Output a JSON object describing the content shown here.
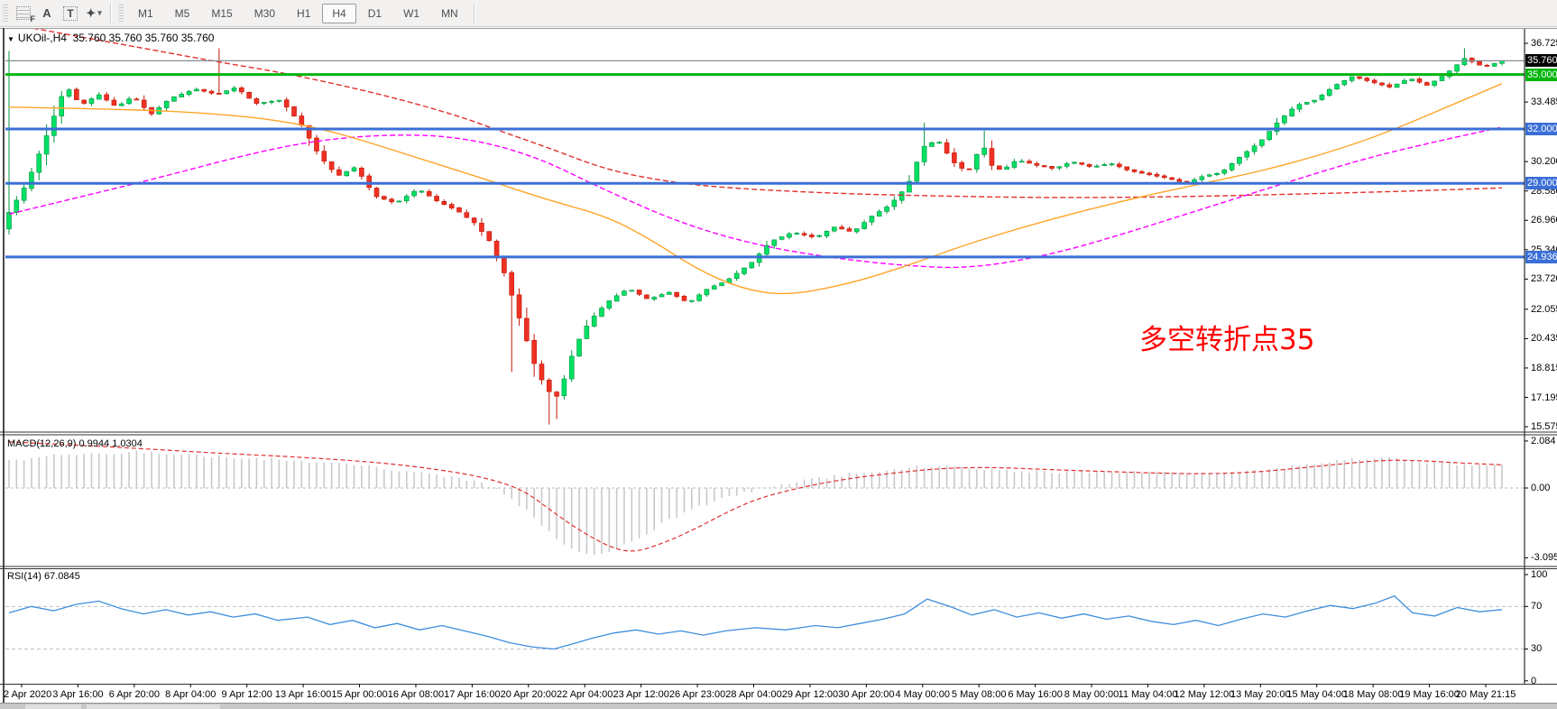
{
  "toolbar": {
    "tools": [
      {
        "id": "chart-grid-tool",
        "glyph": "",
        "sub": "F"
      },
      {
        "id": "label-tool",
        "glyph": "A"
      },
      {
        "id": "text-tool",
        "glyph": "T",
        "boxed": true
      },
      {
        "id": "shapes-tool",
        "glyph": "✦",
        "caret": "▾"
      }
    ],
    "timeframes": [
      "M1",
      "M5",
      "M15",
      "M30",
      "H1",
      "H4",
      "D1",
      "W1",
      "MN"
    ],
    "active_timeframe": "H4"
  },
  "chart_data": {
    "type": "candlestick",
    "symbol": "UKOil-",
    "timeframe": "H4",
    "title": "UKOil-,H4",
    "quote_line": "35.760 35.760 35.760 35.760",
    "current_price": 35.76,
    "current_price_label": "35.760",
    "current_price_line_color": "#848c94",
    "price_axis": {
      "range": [
        15.33,
        37.52
      ],
      "ticks": [
        "36.725",
        "33.485",
        "30.200",
        "28.580",
        "26.960",
        "25.340",
        "23.720",
        "22.055",
        "20.435",
        "18.815",
        "17.195",
        "15.575"
      ]
    },
    "level_lines": [
      {
        "label": "35.000",
        "value": 35.0,
        "color": "#00b50c"
      },
      {
        "label": "32.000",
        "value": 32.0,
        "color": "#3b6fd7"
      },
      {
        "label": "29.000",
        "value": 29.0,
        "color": "#3b6fd7"
      },
      {
        "label": "24.936",
        "value": 24.936,
        "color": "#3b6fd7"
      }
    ],
    "annotation": {
      "text": "多空转折点35",
      "color": "#ff0000"
    },
    "time_axis": {
      "labels": [
        "2 Apr 2020",
        "3 Apr 16:00",
        "6 Apr 20:00",
        "8 Apr 04:00",
        "9 Apr 12:00",
        "13 Apr 16:00",
        "15 Apr 00:00",
        "16 Apr 08:00",
        "17 Apr 16:00",
        "20 Apr 20:00",
        "22 Apr 04:00",
        "23 Apr 12:00",
        "26 Apr 23:00",
        "28 Apr 04:00",
        "29 Apr 12:00",
        "30 Apr 20:00",
        "4 May 00:00",
        "5 May 08:00",
        "6 May 16:00",
        "8 May 00:00",
        "11 May 04:00",
        "12 May 12:00",
        "13 May 20:00",
        "15 May 04:00",
        "18 May 08:00",
        "19 May 16:00",
        "20 May 21:15"
      ]
    },
    "candles": {
      "count": 200,
      "up_fill": "#00e164",
      "up_stroke": "#00953f",
      "down_fill": "#ef3124",
      "down_stroke": "#c21807",
      "close_anchors": [
        [
          0,
          27.4
        ],
        [
          0.012,
          29.0
        ],
        [
          0.025,
          31.6
        ],
        [
          0.038,
          34.4
        ],
        [
          0.048,
          33.3
        ],
        [
          0.06,
          33.9
        ],
        [
          0.072,
          33.2
        ],
        [
          0.083,
          33.8
        ],
        [
          0.095,
          32.8
        ],
        [
          0.108,
          33.7
        ],
        [
          0.125,
          34.2
        ],
        [
          0.139,
          33.9
        ],
        [
          0.152,
          34.3
        ],
        [
          0.165,
          33.4
        ],
        [
          0.182,
          33.6
        ],
        [
          0.196,
          32.2
        ],
        [
          0.208,
          30.5
        ],
        [
          0.22,
          29.4
        ],
        [
          0.232,
          29.9
        ],
        [
          0.245,
          28.3
        ],
        [
          0.259,
          27.9
        ],
        [
          0.274,
          28.7
        ],
        [
          0.287,
          28.0
        ],
        [
          0.3,
          27.5
        ],
        [
          0.312,
          26.8
        ],
        [
          0.322,
          25.8
        ],
        [
          0.332,
          24.0
        ],
        [
          0.342,
          21.5
        ],
        [
          0.352,
          19.0
        ],
        [
          0.36,
          17.6
        ],
        [
          0.368,
          17.2
        ],
        [
          0.376,
          19.3
        ],
        [
          0.384,
          20.8
        ],
        [
          0.393,
          21.8
        ],
        [
          0.403,
          22.6
        ],
        [
          0.415,
          23.2
        ],
        [
          0.428,
          22.6
        ],
        [
          0.442,
          23.0
        ],
        [
          0.455,
          22.4
        ],
        [
          0.468,
          23.2
        ],
        [
          0.48,
          23.6
        ],
        [
          0.497,
          24.6
        ],
        [
          0.51,
          25.8
        ],
        [
          0.525,
          26.3
        ],
        [
          0.54,
          26.0
        ],
        [
          0.553,
          26.6
        ],
        [
          0.565,
          26.3
        ],
        [
          0.578,
          27.2
        ],
        [
          0.59,
          27.8
        ],
        [
          0.602,
          28.9
        ],
        [
          0.612,
          31.0
        ],
        [
          0.622,
          31.4
        ],
        [
          0.632,
          30.2
        ],
        [
          0.642,
          29.6
        ],
        [
          0.652,
          31.2
        ],
        [
          0.658,
          30.0
        ],
        [
          0.665,
          29.7
        ],
        [
          0.675,
          30.3
        ],
        [
          0.688,
          30.0
        ],
        [
          0.7,
          29.8
        ],
        [
          0.712,
          30.2
        ],
        [
          0.725,
          29.9
        ],
        [
          0.738,
          30.1
        ],
        [
          0.75,
          29.7
        ],
        [
          0.762,
          29.5
        ],
        [
          0.775,
          29.3
        ],
        [
          0.788,
          29.0
        ],
        [
          0.8,
          29.4
        ],
        [
          0.812,
          29.6
        ],
        [
          0.825,
          30.5
        ],
        [
          0.838,
          31.3
        ],
        [
          0.85,
          32.4
        ],
        [
          0.862,
          33.3
        ],
        [
          0.875,
          33.6
        ],
        [
          0.888,
          34.4
        ],
        [
          0.9,
          34.9
        ],
        [
          0.912,
          34.6
        ],
        [
          0.925,
          34.3
        ],
        [
          0.938,
          34.8
        ],
        [
          0.95,
          34.4
        ],
        [
          0.962,
          35.0
        ],
        [
          0.975,
          35.9
        ],
        [
          0.988,
          35.4
        ],
        [
          1.0,
          35.76
        ]
      ],
      "spikes": [
        {
          "t": 0.002,
          "high": 36.3,
          "low": 26.7
        },
        {
          "t": 0.139,
          "high": 36.45
        },
        {
          "t": 0.335,
          "low": 18.6
        },
        {
          "t": 0.362,
          "low": 15.7
        },
        {
          "t": 0.369,
          "low": 16.0
        },
        {
          "t": 0.612,
          "high": 32.35
        },
        {
          "t": 0.652,
          "high": 31.9
        },
        {
          "t": 0.975,
          "high": 36.45
        }
      ]
    },
    "moving_averages": [
      {
        "name": "ma-slow-red",
        "color": "#e03030",
        "dash": "6 3",
        "anchors": [
          [
            0,
            37.8
          ],
          [
            0.06,
            36.9
          ],
          [
            0.1,
            36.3
          ],
          [
            0.14,
            35.7
          ],
          [
            0.19,
            35.0
          ],
          [
            0.25,
            33.9
          ],
          [
            0.3,
            32.75
          ],
          [
            0.325,
            32.0
          ],
          [
            0.36,
            31.0
          ],
          [
            0.4,
            29.75
          ],
          [
            0.44,
            29.1
          ],
          [
            0.48,
            28.75
          ],
          [
            0.55,
            28.45
          ],
          [
            0.62,
            28.3
          ],
          [
            0.7,
            28.2
          ],
          [
            0.78,
            28.25
          ],
          [
            0.86,
            28.4
          ],
          [
            0.93,
            28.55
          ],
          [
            1.0,
            28.75
          ]
        ]
      },
      {
        "name": "ma-medium-magenta",
        "color": "#ff00ff",
        "dash": "6 3",
        "anchors": [
          [
            0,
            27.3
          ],
          [
            0.05,
            28.3
          ],
          [
            0.1,
            29.3
          ],
          [
            0.155,
            30.5
          ],
          [
            0.2,
            31.3
          ],
          [
            0.25,
            31.7
          ],
          [
            0.3,
            31.6
          ],
          [
            0.35,
            30.6
          ],
          [
            0.4,
            28.6
          ],
          [
            0.45,
            26.8
          ],
          [
            0.5,
            25.6
          ],
          [
            0.55,
            24.9
          ],
          [
            0.6,
            24.45
          ],
          [
            0.645,
            24.3
          ],
          [
            0.7,
            25.1
          ],
          [
            0.75,
            26.3
          ],
          [
            0.8,
            27.6
          ],
          [
            0.85,
            28.9
          ],
          [
            0.905,
            30.3
          ],
          [
            0.95,
            31.2
          ],
          [
            1.0,
            32.1
          ]
        ]
      },
      {
        "name": "ma-fast-orange",
        "color": "#ffa428",
        "dash": "",
        "anchors": [
          [
            0,
            33.2
          ],
          [
            0.07,
            33.1
          ],
          [
            0.13,
            32.9
          ],
          [
            0.18,
            32.5
          ],
          [
            0.22,
            31.8
          ],
          [
            0.27,
            30.5
          ],
          [
            0.32,
            29.2
          ],
          [
            0.36,
            28.1
          ],
          [
            0.4,
            27.2
          ],
          [
            0.43,
            25.9
          ],
          [
            0.46,
            24.3
          ],
          [
            0.49,
            23.2
          ],
          [
            0.52,
            22.8
          ],
          [
            0.56,
            23.4
          ],
          [
            0.6,
            24.4
          ],
          [
            0.64,
            25.6
          ],
          [
            0.68,
            26.6
          ],
          [
            0.72,
            27.5
          ],
          [
            0.76,
            28.3
          ],
          [
            0.8,
            29.0
          ],
          [
            0.84,
            29.7
          ],
          [
            0.88,
            30.6
          ],
          [
            0.92,
            31.7
          ],
          [
            0.96,
            33.1
          ],
          [
            1.0,
            34.5
          ]
        ]
      }
    ],
    "macd": {
      "label": "MACD(12,26,9)",
      "value": "0.9944",
      "signal_value": "1.0304",
      "axis_ticks": [
        "2.084",
        "0.00",
        "-3.0957"
      ],
      "hist_color": "#c9c9c9",
      "signal_color": "#e03030",
      "hist_anchors": [
        [
          0,
          1.2
        ],
        [
          0.03,
          1.45
        ],
        [
          0.06,
          1.55
        ],
        [
          0.09,
          1.6
        ],
        [
          0.12,
          1.5
        ],
        [
          0.15,
          1.35
        ],
        [
          0.18,
          1.25
        ],
        [
          0.21,
          1.15
        ],
        [
          0.24,
          1.0
        ],
        [
          0.27,
          0.7
        ],
        [
          0.3,
          0.45
        ],
        [
          0.32,
          0.15
        ],
        [
          0.335,
          -0.4
        ],
        [
          0.35,
          -1.2
        ],
        [
          0.365,
          -2.2
        ],
        [
          0.38,
          -2.8
        ],
        [
          0.395,
          -3.0
        ],
        [
          0.41,
          -2.6
        ],
        [
          0.425,
          -2.1
        ],
        [
          0.44,
          -1.5
        ],
        [
          0.46,
          -0.9
        ],
        [
          0.48,
          -0.4
        ],
        [
          0.5,
          -0.1
        ],
        [
          0.52,
          0.2
        ],
        [
          0.55,
          0.5
        ],
        [
          0.58,
          0.75
        ],
        [
          0.61,
          0.95
        ],
        [
          0.64,
          0.9
        ],
        [
          0.67,
          0.78
        ],
        [
          0.7,
          0.7
        ],
        [
          0.73,
          0.75
        ],
        [
          0.76,
          0.7
        ],
        [
          0.79,
          0.62
        ],
        [
          0.82,
          0.68
        ],
        [
          0.85,
          0.9
        ],
        [
          0.88,
          1.15
        ],
        [
          0.905,
          1.3
        ],
        [
          0.925,
          1.32
        ],
        [
          0.945,
          1.2
        ],
        [
          0.965,
          1.1
        ],
        [
          0.985,
          1.02
        ],
        [
          1.0,
          0.99
        ]
      ],
      "signal_anchors": [
        [
          0,
          2.05
        ],
        [
          0.04,
          1.92
        ],
        [
          0.08,
          1.78
        ],
        [
          0.12,
          1.62
        ],
        [
          0.16,
          1.48
        ],
        [
          0.2,
          1.35
        ],
        [
          0.25,
          1.12
        ],
        [
          0.29,
          0.8
        ],
        [
          0.32,
          0.45
        ],
        [
          0.345,
          -0.1
        ],
        [
          0.365,
          -1.1
        ],
        [
          0.385,
          -2.0
        ],
        [
          0.405,
          -2.7
        ],
        [
          0.42,
          -2.85
        ],
        [
          0.44,
          -2.4
        ],
        [
          0.46,
          -1.8
        ],
        [
          0.48,
          -1.1
        ],
        [
          0.5,
          -0.5
        ],
        [
          0.525,
          -0.05
        ],
        [
          0.555,
          0.35
        ],
        [
          0.59,
          0.65
        ],
        [
          0.625,
          0.88
        ],
        [
          0.66,
          0.92
        ],
        [
          0.695,
          0.82
        ],
        [
          0.73,
          0.74
        ],
        [
          0.765,
          0.67
        ],
        [
          0.8,
          0.62
        ],
        [
          0.835,
          0.7
        ],
        [
          0.87,
          0.92
        ],
        [
          0.9,
          1.12
        ],
        [
          0.925,
          1.25
        ],
        [
          0.95,
          1.2
        ],
        [
          0.975,
          1.1
        ],
        [
          1.0,
          1.03
        ]
      ]
    },
    "rsi": {
      "label": "RSI(14)",
      "value": "67.0845",
      "axis_ticks": [
        "100",
        "70",
        "30",
        "0"
      ],
      "guide_levels": [
        70,
        30
      ],
      "color": "#3e8ede",
      "anchors": [
        [
          0,
          64
        ],
        [
          0.015,
          70
        ],
        [
          0.03,
          66
        ],
        [
          0.045,
          72
        ],
        [
          0.06,
          75
        ],
        [
          0.075,
          68
        ],
        [
          0.09,
          63
        ],
        [
          0.105,
          67
        ],
        [
          0.12,
          62
        ],
        [
          0.135,
          65
        ],
        [
          0.15,
          60
        ],
        [
          0.165,
          63
        ],
        [
          0.18,
          57
        ],
        [
          0.2,
          60
        ],
        [
          0.215,
          53
        ],
        [
          0.23,
          57
        ],
        [
          0.245,
          50
        ],
        [
          0.26,
          54
        ],
        [
          0.275,
          48
        ],
        [
          0.29,
          52
        ],
        [
          0.305,
          47
        ],
        [
          0.32,
          42
        ],
        [
          0.335,
          36
        ],
        [
          0.35,
          32
        ],
        [
          0.365,
          30
        ],
        [
          0.378,
          35
        ],
        [
          0.39,
          40
        ],
        [
          0.405,
          45
        ],
        [
          0.42,
          48
        ],
        [
          0.435,
          44
        ],
        [
          0.45,
          47
        ],
        [
          0.465,
          43
        ],
        [
          0.48,
          47
        ],
        [
          0.5,
          50
        ],
        [
          0.52,
          48
        ],
        [
          0.54,
          52
        ],
        [
          0.555,
          50
        ],
        [
          0.57,
          54
        ],
        [
          0.585,
          58
        ],
        [
          0.6,
          63
        ],
        [
          0.615,
          77
        ],
        [
          0.63,
          70
        ],
        [
          0.645,
          62
        ],
        [
          0.66,
          67
        ],
        [
          0.675,
          60
        ],
        [
          0.69,
          64
        ],
        [
          0.705,
          59
        ],
        [
          0.72,
          63
        ],
        [
          0.735,
          58
        ],
        [
          0.75,
          61
        ],
        [
          0.765,
          56
        ],
        [
          0.78,
          53
        ],
        [
          0.795,
          57
        ],
        [
          0.81,
          52
        ],
        [
          0.825,
          58
        ],
        [
          0.84,
          63
        ],
        [
          0.855,
          60
        ],
        [
          0.87,
          66
        ],
        [
          0.885,
          71
        ],
        [
          0.9,
          68
        ],
        [
          0.915,
          73
        ],
        [
          0.928,
          80
        ],
        [
          0.94,
          64
        ],
        [
          0.955,
          61
        ],
        [
          0.97,
          69
        ],
        [
          0.985,
          65
        ],
        [
          1.0,
          67.1
        ]
      ]
    }
  }
}
